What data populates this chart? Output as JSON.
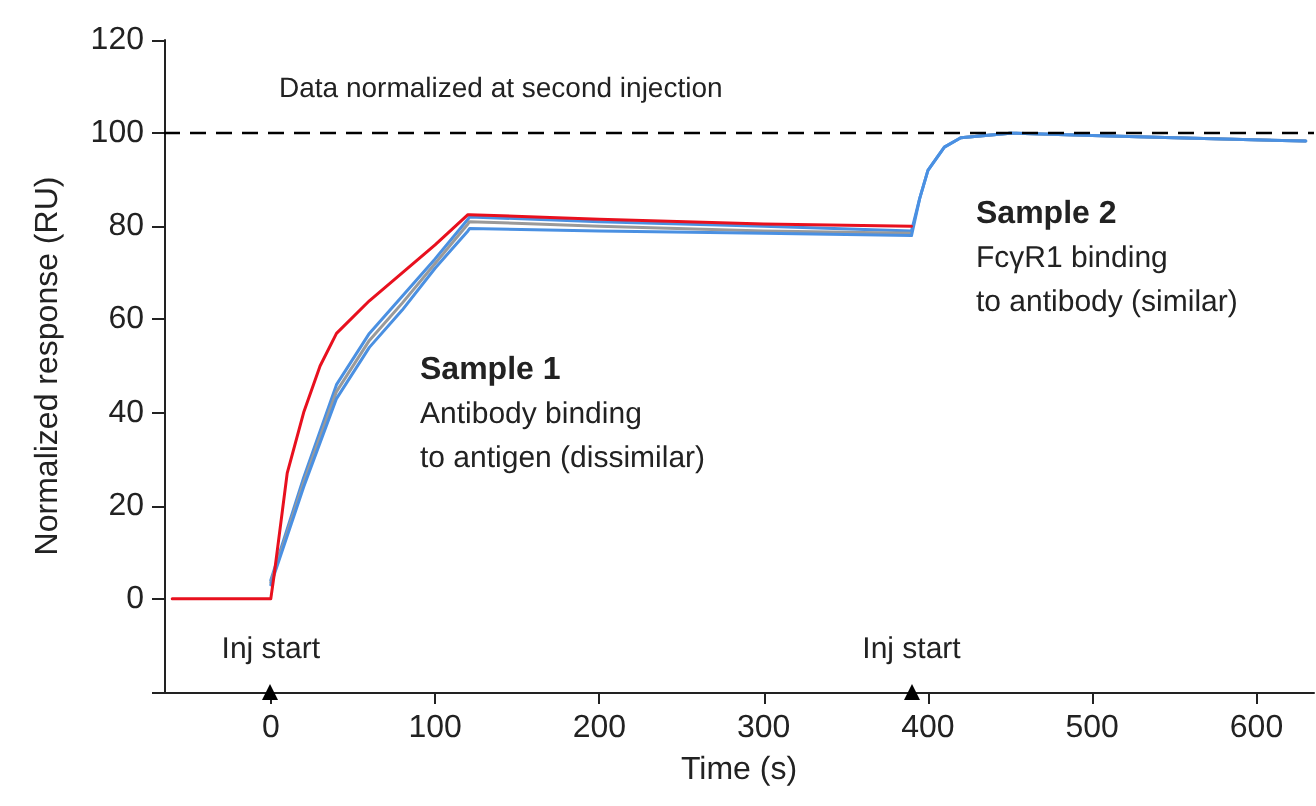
{
  "chart_data": {
    "type": "line",
    "xlabel": "Time (s)",
    "ylabel": "Normalized response (RU)",
    "xlim": [
      -65,
      635
    ],
    "xticks": [
      0,
      100,
      200,
      300,
      400,
      500,
      600
    ],
    "ylim": [
      -20,
      120
    ],
    "yticks": [
      {
        "value": -20,
        "label": null
      },
      0,
      20,
      40,
      60,
      80,
      100,
      120
    ],
    "marker": "none",
    "line_style": "solid",
    "ref_lines": [
      {
        "axis": "y",
        "value": 100,
        "label": "Data normalized at second injection",
        "color": "#000000",
        "line_style": "dashed"
      }
    ],
    "annotations": [
      {
        "text": "Inj start",
        "x": 0,
        "y": -20
      },
      {
        "text": "Inj start",
        "x": 390,
        "y": -20
      },
      "Sample 1",
      "Antibody binding\nto antigen (dissimilar)",
      "Sample 2",
      "FcγR1 binding\nto antibody (similar)"
    ],
    "series": [
      {
        "color": "#4a90e2",
        "x": [
          0,
          20,
          40,
          60,
          80,
          100,
          120,
          121,
          200,
          300,
          390,
          395,
          400,
          410,
          420,
          450,
          500,
          550,
          630
        ],
        "values": [
          4,
          26,
          46,
          57,
          65,
          73,
          81.5,
          82,
          81,
          80,
          79,
          86,
          92,
          97,
          99,
          100,
          99.5,
          99,
          98.3
        ]
      },
      {
        "color": "#9a9a9a",
        "x": [
          0,
          20,
          40,
          60,
          80,
          100,
          120,
          121,
          200,
          300,
          390,
          395,
          400,
          410,
          420,
          450,
          500,
          550,
          630
        ],
        "values": [
          3.5,
          25,
          44.5,
          55.5,
          63.5,
          72,
          80.5,
          81,
          80,
          79,
          78.5,
          null,
          null,
          null,
          99,
          100,
          99.5,
          99,
          98.3
        ]
      },
      {
        "color": "#4a90e2",
        "x": [
          0,
          20,
          40,
          60,
          80,
          100,
          120,
          121,
          200,
          300,
          390,
          395,
          400,
          410,
          420,
          450,
          500,
          550,
          630
        ],
        "values": [
          3,
          24,
          43,
          54,
          62,
          71,
          79,
          79.5,
          79,
          78.5,
          78,
          86,
          92,
          97,
          99,
          100,
          99.5,
          99,
          98.3
        ]
      },
      {
        "color": "#e8101e",
        "x": [
          -60,
          0,
          2,
          10,
          20,
          30,
          40,
          60,
          80,
          100,
          120,
          121,
          200,
          300,
          390
        ],
        "values": [
          0,
          0,
          5,
          27,
          40,
          50,
          57,
          64,
          70,
          76,
          82.5,
          82.5,
          81.5,
          80.5,
          80
        ]
      }
    ]
  }
}
